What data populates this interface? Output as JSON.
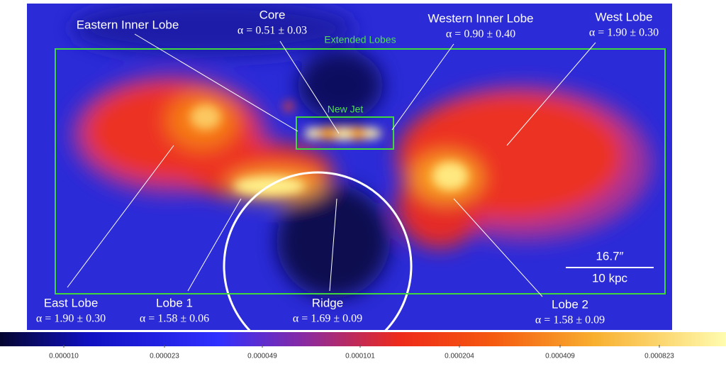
{
  "labels": [
    {
      "name": "Eastern Inner Lobe"
    },
    {
      "name": "Core",
      "alpha": "α = 0.51 ± 0.03"
    },
    {
      "name": "Western Inner Lobe",
      "alpha": "α = 0.90 ± 0.40"
    },
    {
      "name": "West Lobe",
      "alpha": "α = 1.90 ± 0.30"
    },
    {
      "name": "East Lobe",
      "alpha": "α = 1.90 ± 0.30"
    },
    {
      "name": "Lobe 1",
      "alpha": "α = 1.58 ± 0.06"
    },
    {
      "name": "Ridge",
      "alpha": "α = 1.69 ± 0.09"
    },
    {
      "name": "Lobe 2",
      "alpha": "α = 1.58 ± 0.09"
    }
  ],
  "boxes": {
    "extended": "Extended Lobes",
    "jet": "New Jet"
  },
  "scale_bar": {
    "angular": "16.7″",
    "physical": "10 kpc"
  },
  "colorbar": {
    "ticks": [
      "0.000010",
      "0.000023",
      "0.000049",
      "0.000101",
      "0.000204",
      "0.000409",
      "0.000823"
    ]
  }
}
